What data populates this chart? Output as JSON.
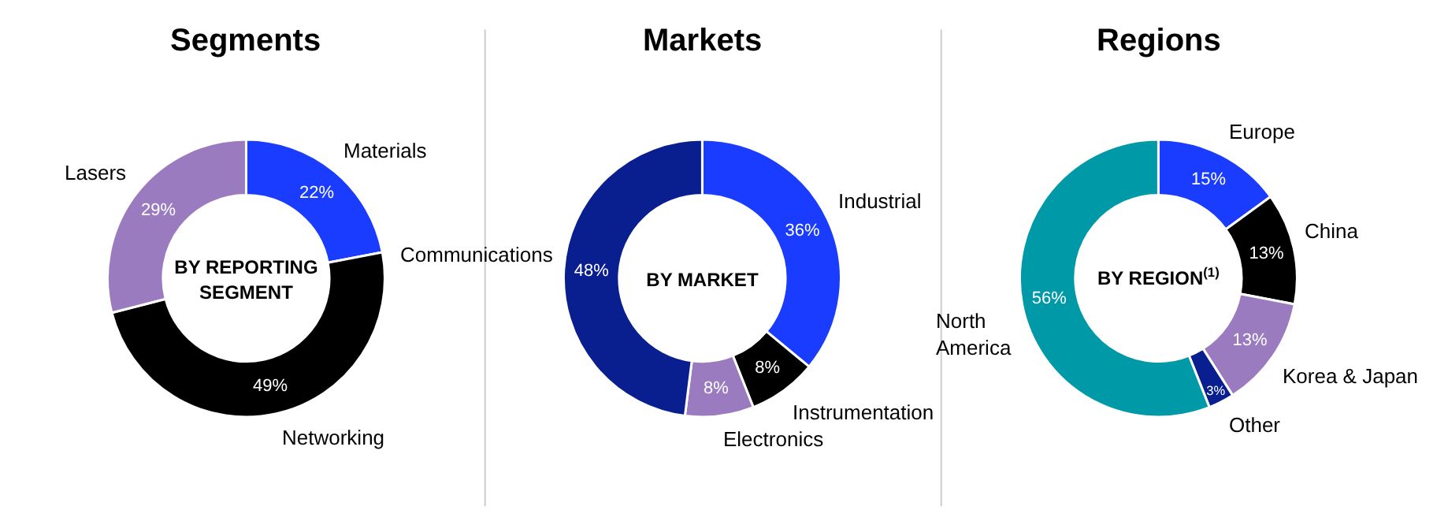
{
  "chart_data": [
    {
      "type": "donut",
      "title": "Segments",
      "subtitle": "BY REPORTING\nSEGMENT",
      "categories": [
        "Materials",
        "Networking",
        "Lasers"
      ],
      "values": [
        22,
        49,
        29
      ],
      "value_labels": [
        "22%",
        "49%",
        "29%"
      ],
      "colors": [
        "#1a3cff",
        "#000000",
        "#9b7bbf"
      ]
    },
    {
      "type": "donut",
      "title": "Markets",
      "subtitle": "BY MARKET",
      "categories": [
        "Industrial",
        "Instrumentation",
        "Electronics",
        "Communications"
      ],
      "values": [
        36,
        8,
        8,
        48
      ],
      "value_labels": [
        "36%",
        "8%",
        "8%",
        "48%"
      ],
      "colors": [
        "#1a3cff",
        "#000000",
        "#9b7bbf",
        "#0a1f8f"
      ]
    },
    {
      "type": "donut",
      "title": "Regions",
      "subtitle": "BY REGION$^{(1)}$",
      "categories": [
        "Europe",
        "China",
        "Korea & Japan",
        "Other",
        "North\nAmerica"
      ],
      "values": [
        15,
        13,
        13,
        3,
        56
      ],
      "value_labels": [
        "15%",
        "13%",
        "13%",
        "3%",
        "56%"
      ],
      "colors": [
        "#1a3cff",
        "#000000",
        "#9b7bbf",
        "#0a1f8f",
        "#0099a8"
      ]
    }
  ]
}
